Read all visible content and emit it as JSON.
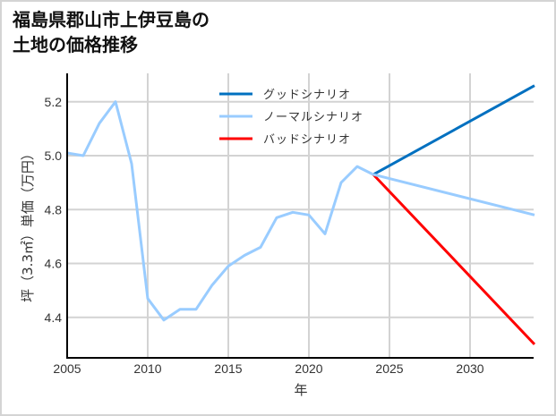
{
  "title": {
    "line1": "福島県郡山市上伊豆島の",
    "line2": "土地の価格推移"
  },
  "colors": {
    "good": "#0070C0",
    "normal": "#99CCFF",
    "bad": "#FF0000",
    "grid": "#d3d3d3",
    "axis": "#000000"
  },
  "legend": {
    "items": [
      {
        "label": "グッドシナリオ",
        "color": "#0070C0"
      },
      {
        "label": "ノーマルシナリオ",
        "color": "#99CCFF"
      },
      {
        "label": "バッドシナリオ",
        "color": "#FF0000"
      }
    ]
  },
  "axes": {
    "xlabel": "年",
    "ylabel": "坪（3.3㎡）単価（万円）",
    "xticks": [
      "2005",
      "2010",
      "2015",
      "2020",
      "2025",
      "2030"
    ],
    "yticks": [
      "4.4",
      "4.6",
      "4.8",
      "5.0",
      "5.2"
    ]
  },
  "chart_data": {
    "type": "line",
    "title": "福島県郡山市上伊豆島の土地の価格推移",
    "xlabel": "年",
    "ylabel": "坪（3.3㎡）単価（万円）",
    "xlim": [
      2005,
      2034
    ],
    "ylim": [
      4.25,
      5.31
    ],
    "grid": true,
    "legend_position": "upper center",
    "x": [
      2005,
      2006,
      2007,
      2008,
      2009,
      2010,
      2011,
      2012,
      2013,
      2014,
      2015,
      2016,
      2017,
      2018,
      2019,
      2020,
      2021,
      2022,
      2023,
      2024
    ],
    "series": [
      {
        "name": "ノーマルシナリオ (実績)",
        "color": "#99CCFF",
        "x": [
          2005,
          2006,
          2007,
          2008,
          2009,
          2010,
          2011,
          2012,
          2013,
          2014,
          2015,
          2016,
          2017,
          2018,
          2019,
          2020,
          2021,
          2022,
          2023,
          2024
        ],
        "values": [
          5.01,
          5.0,
          5.12,
          5.2,
          4.97,
          4.47,
          4.39,
          4.43,
          4.43,
          4.52,
          4.59,
          4.63,
          4.66,
          4.77,
          4.79,
          4.78,
          4.71,
          4.9,
          4.96,
          4.93
        ]
      },
      {
        "name": "グッドシナリオ",
        "color": "#0070C0",
        "x": [
          2024,
          2034
        ],
        "values": [
          4.93,
          5.26
        ]
      },
      {
        "name": "ノーマルシナリオ",
        "color": "#99CCFF",
        "x": [
          2024,
          2034
        ],
        "values": [
          4.93,
          4.78
        ]
      },
      {
        "name": "バッドシナリオ",
        "color": "#FF0000",
        "x": [
          2024,
          2034
        ],
        "values": [
          4.93,
          4.3
        ]
      }
    ]
  }
}
